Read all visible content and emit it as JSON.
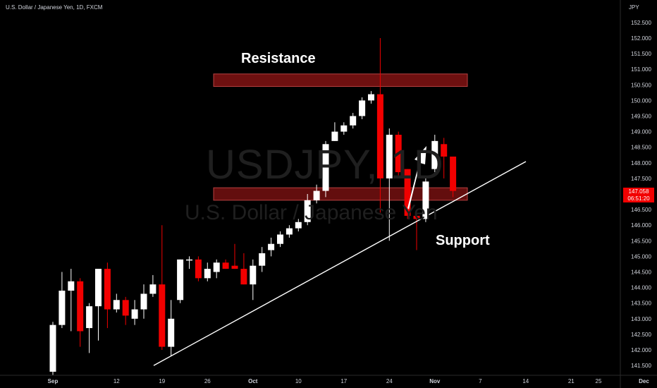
{
  "header": {
    "symbol_title": "U.S. Dollar / Japanese Yen, 1D, FXCM",
    "unit": "JPY"
  },
  "watermark": {
    "ticker": "USDJPY, 1D",
    "name": "U.S. Dollar / Japanese Yen"
  },
  "price_tag": {
    "price": "147.058",
    "countdown": "06:51:20",
    "color": "#f20000"
  },
  "annotations": {
    "resistance_label": "Resistance",
    "support_label": "Support",
    "zone_color": "#6e1010"
  },
  "colors": {
    "up": "#ffffff",
    "down": "#f20000",
    "background": "#000000"
  },
  "chart_data": {
    "type": "candlestick",
    "title": "U.S. Dollar / Japanese Yen, 1D, FXCM",
    "ylabel": "JPY",
    "ylim": [
      141.2,
      152.6
    ],
    "y_ticks": [
      "141.500",
      "142.000",
      "142.500",
      "143.000",
      "143.500",
      "144.000",
      "144.500",
      "145.000",
      "145.500",
      "146.000",
      "146.500",
      "147.000",
      "147.500",
      "148.000",
      "148.500",
      "149.000",
      "149.500",
      "150.000",
      "150.500",
      "151.000",
      "151.500",
      "152.000",
      "152.500"
    ],
    "x_tick_labels": [
      "Sep",
      "12",
      "19",
      "26",
      "Oct",
      "10",
      "17",
      "24",
      "Nov",
      "7",
      "14",
      "21",
      "25",
      "Dec"
    ],
    "x_tick_index": [
      -0.5,
      6.5,
      11.5,
      16.5,
      21.5,
      26.5,
      31.5,
      36.5,
      41.5,
      46.5,
      51.5,
      56.5,
      59.5,
      64.5
    ],
    "last_price": 147.058,
    "candles": [
      {
        "o": 141.3,
        "h": 142.9,
        "l": 141.2,
        "c": 142.8
      },
      {
        "o": 142.8,
        "h": 144.5,
        "l": 142.7,
        "c": 143.9
      },
      {
        "o": 143.9,
        "h": 144.6,
        "l": 142.6,
        "c": 144.2
      },
      {
        "o": 144.2,
        "h": 144.3,
        "l": 142.1,
        "c": 142.6
      },
      {
        "o": 142.7,
        "h": 143.5,
        "l": 141.9,
        "c": 143.4
      },
      {
        "o": 143.4,
        "h": 144.5,
        "l": 142.3,
        "c": 144.6
      },
      {
        "o": 144.6,
        "h": 144.8,
        "l": 142.7,
        "c": 143.3
      },
      {
        "o": 143.3,
        "h": 143.8,
        "l": 143.2,
        "c": 143.6
      },
      {
        "o": 143.6,
        "h": 143.7,
        "l": 142.8,
        "c": 143.1
      },
      {
        "o": 143.0,
        "h": 143.6,
        "l": 142.8,
        "c": 143.3
      },
      {
        "o": 143.3,
        "h": 144.1,
        "l": 143.0,
        "c": 143.8
      },
      {
        "o": 143.8,
        "h": 144.4,
        "l": 143.7,
        "c": 144.1
      },
      {
        "o": 144.1,
        "h": 146.0,
        "l": 142.0,
        "c": 142.1
      },
      {
        "o": 142.1,
        "h": 143.6,
        "l": 141.8,
        "c": 143.0
      },
      {
        "o": 143.6,
        "h": 144.9,
        "l": 143.5,
        "c": 144.9
      },
      {
        "o": 144.9,
        "h": 145.0,
        "l": 144.6,
        "c": 144.9
      },
      {
        "o": 144.9,
        "h": 145.0,
        "l": 144.2,
        "c": 144.3
      },
      {
        "o": 144.3,
        "h": 144.8,
        "l": 144.2,
        "c": 144.6
      },
      {
        "o": 144.5,
        "h": 144.9,
        "l": 144.3,
        "c": 144.8
      },
      {
        "o": 144.8,
        "h": 144.9,
        "l": 144.6,
        "c": 144.6
      },
      {
        "o": 144.7,
        "h": 145.4,
        "l": 144.6,
        "c": 144.6
      },
      {
        "o": 144.6,
        "h": 145.1,
        "l": 144.1,
        "c": 144.1
      },
      {
        "o": 144.1,
        "h": 144.9,
        "l": 143.6,
        "c": 144.7
      },
      {
        "o": 144.7,
        "h": 145.3,
        "l": 144.5,
        "c": 145.1
      },
      {
        "o": 145.2,
        "h": 145.6,
        "l": 145.0,
        "c": 145.4
      },
      {
        "o": 145.4,
        "h": 145.8,
        "l": 145.3,
        "c": 145.7
      },
      {
        "o": 145.7,
        "h": 146.0,
        "l": 145.6,
        "c": 145.9
      },
      {
        "o": 145.9,
        "h": 146.2,
        "l": 145.8,
        "c": 146.1
      },
      {
        "o": 146.1,
        "h": 147.0,
        "l": 146.0,
        "c": 146.8
      },
      {
        "o": 146.8,
        "h": 147.3,
        "l": 146.7,
        "c": 147.1
      },
      {
        "o": 147.1,
        "h": 148.7,
        "l": 146.9,
        "c": 148.6
      },
      {
        "o": 148.7,
        "h": 149.3,
        "l": 148.7,
        "c": 149.0
      },
      {
        "o": 149.0,
        "h": 149.3,
        "l": 148.9,
        "c": 149.2
      },
      {
        "o": 149.2,
        "h": 149.6,
        "l": 149.1,
        "c": 149.5
      },
      {
        "o": 149.5,
        "h": 150.1,
        "l": 149.4,
        "c": 150.0
      },
      {
        "o": 150.0,
        "h": 150.3,
        "l": 149.9,
        "c": 150.2
      },
      {
        "o": 150.2,
        "h": 152.0,
        "l": 146.4,
        "c": 147.5
      },
      {
        "o": 147.5,
        "h": 149.1,
        "l": 145.5,
        "c": 148.9
      },
      {
        "o": 148.9,
        "h": 149.0,
        "l": 147.6,
        "c": 147.7
      },
      {
        "o": 147.8,
        "h": 147.8,
        "l": 146.2,
        "c": 146.3
      },
      {
        "o": 146.3,
        "h": 146.4,
        "l": 145.2,
        "c": 146.2
      },
      {
        "o": 146.2,
        "h": 147.5,
        "l": 146.1,
        "c": 147.4
      },
      {
        "o": 147.8,
        "h": 148.9,
        "l": 147.7,
        "c": 148.7
      },
      {
        "o": 148.6,
        "h": 148.8,
        "l": 147.5,
        "c": 148.2
      },
      {
        "o": 148.2,
        "h": 148.2,
        "l": 146.9,
        "c": 147.1
      }
    ],
    "resistance_zone": [
      150.45,
      150.85
    ],
    "support_zone": [
      146.8,
      147.2
    ],
    "trendline": [
      {
        "i": 12,
        "p": 141.5
      },
      {
        "i": 53,
        "p": 148.0
      }
    ],
    "arrow": [
      {
        "i": 44,
        "p": 147.0
      },
      {
        "i": 46,
        "p": 148.4
      }
    ]
  }
}
